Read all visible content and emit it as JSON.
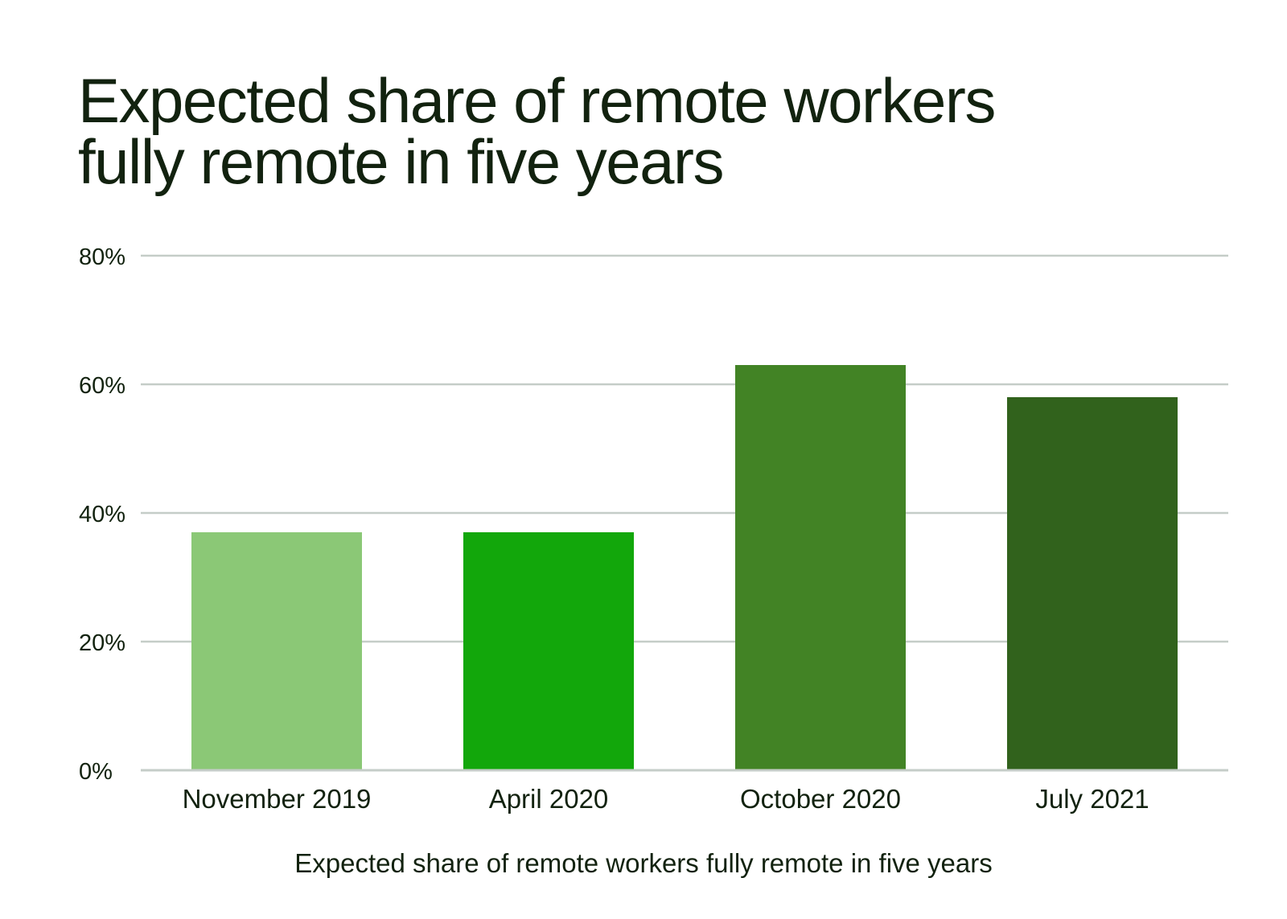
{
  "chart_data": {
    "type": "bar",
    "title_lines": [
      "Expected share of remote workers",
      "fully remote in five years"
    ],
    "xlabel": "Expected share of remote workers fully remote in five years",
    "ylabel": "",
    "categories": [
      "November 2019",
      "April 2020",
      "October 2020",
      "July 2021"
    ],
    "values": [
      37,
      37,
      63,
      58
    ],
    "bar_colors": [
      "#8bc876",
      "#12a70b",
      "#428325",
      "#31621c"
    ],
    "ylim": [
      0,
      80
    ],
    "yticks": [
      0,
      20,
      40,
      60,
      80
    ],
    "ytick_labels": [
      "0%",
      "20%",
      "40%",
      "60%",
      "80%"
    ],
    "grid": true,
    "legend": "none"
  }
}
